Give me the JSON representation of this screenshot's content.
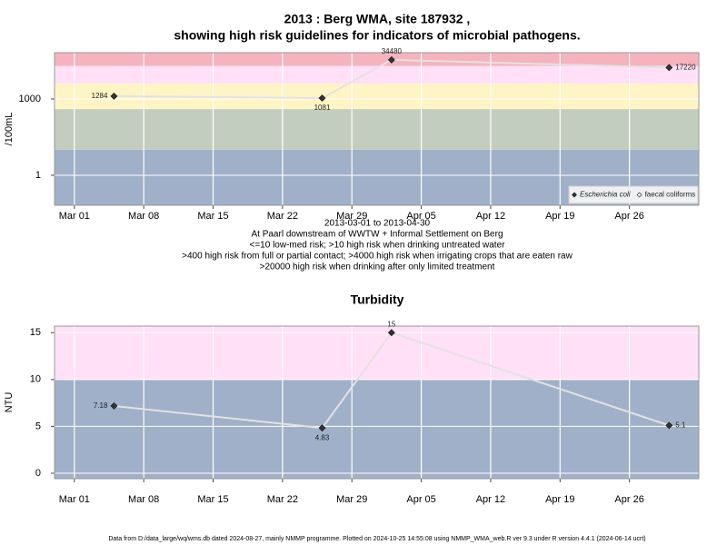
{
  "chart_data": [
    {
      "type": "line",
      "title": [
        "2013 : Berg WMA, site 187932 ,",
        "showing high risk guidelines for indicators of microbial pathogens."
      ],
      "ylabel": "/100mL",
      "xlabel": [
        "2013-03-01 to 2013-04-30",
        "At Paarl downstream of WWTW + Informal Settlement on Berg",
        "<=10 low-med risk; >10 high risk when drinking untreated water",
        ">400 high risk from full or partial contact; >4000 high risk when irrigating crops that are eaten raw",
        ">20000 high risk when drinking after only limited treatment"
      ],
      "x": [
        "2013-03-05",
        "2013-03-26",
        "2013-04-02",
        "2013-04-30"
      ],
      "series": [
        {
          "name": "Escherichia coli",
          "color": "#333333",
          "values": [
            1284,
            1081,
            34480,
            17220
          ]
        },
        {
          "name": "faecal coliforms",
          "color": "#ffffff",
          "values": [
            null,
            null,
            null,
            null
          ]
        }
      ],
      "log_y": true,
      "ylim": [
        0.066,
        66000
      ],
      "yticks": [
        1,
        1000
      ],
      "xlim": [
        "2013-02-27",
        "2013-05-03"
      ],
      "xticks": [
        {
          "value": "2013-03-01",
          "label": "Mar 01"
        },
        {
          "value": "2013-03-08",
          "label": "Mar 08"
        },
        {
          "value": "2013-03-15",
          "label": "Mar 15"
        },
        {
          "value": "2013-03-22",
          "label": "Mar 22"
        },
        {
          "value": "2013-03-29",
          "label": "Mar 29"
        },
        {
          "value": "2013-04-05",
          "label": "Apr 05"
        },
        {
          "value": "2013-04-12",
          "label": "Apr 12"
        },
        {
          "value": "2013-04-19",
          "label": "Apr 19"
        },
        {
          "value": "2013-04-26",
          "label": "Apr 26"
        }
      ],
      "thresholds": [
        10,
        400,
        4000,
        20000
      ],
      "band_colors": [
        "#a0b0c8",
        "#c3cdbf",
        "#fff5c4",
        "#ffe0f6",
        "#f5b3be"
      ],
      "line_color": "#e2e2e2",
      "grid": true,
      "legend": "bottom right"
    },
    {
      "type": "line",
      "title": "Turbidity",
      "ylabel": "NTU",
      "x": [
        "2013-03-05",
        "2013-03-26",
        "2013-04-02",
        "2013-04-30"
      ],
      "values": [
        7.18,
        4.83,
        15,
        5.1
      ],
      "color": "#333333",
      "ylim": [
        -0.58,
        15.7
      ],
      "yticks": [
        0,
        5,
        10,
        15
      ],
      "xlim": [
        "2013-02-27",
        "2013-05-03"
      ],
      "xticks": [
        {
          "value": "2013-03-01",
          "label": "Mar 01"
        },
        {
          "value": "2013-03-08",
          "label": "Mar 08"
        },
        {
          "value": "2013-03-15",
          "label": "Mar 15"
        },
        {
          "value": "2013-03-22",
          "label": "Mar 22"
        },
        {
          "value": "2013-03-29",
          "label": "Mar 29"
        },
        {
          "value": "2013-04-05",
          "label": "Apr 05"
        },
        {
          "value": "2013-04-12",
          "label": "Apr 12"
        },
        {
          "value": "2013-04-19",
          "label": "Apr 19"
        },
        {
          "value": "2013-04-26",
          "label": "Apr 26"
        }
      ],
      "thresholds": [
        10
      ],
      "band_colors": [
        "#a0b0c8",
        "#ffe0f6"
      ],
      "line_color": "#e2e2e2",
      "grid": true
    }
  ],
  "footer": "Data from D:/data_large/wq/wms.db dated 2024-08-27, mainly NMMP programme. Plotted on 2024-10-25 14:55:08 using NMMP_WMA_web.R ver 9.3 under R version 4.4.1 (2024-06-14 ucrt)"
}
